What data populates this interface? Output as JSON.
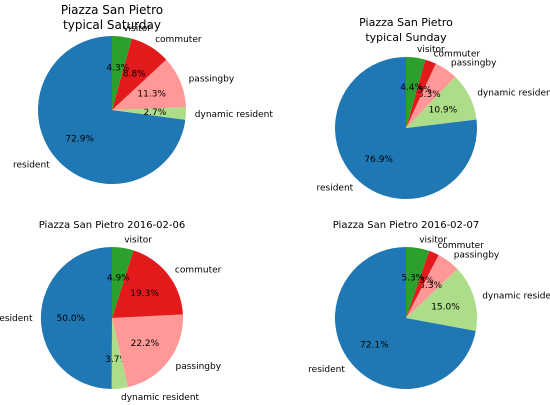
{
  "colors": {
    "resident": "#1f77b4",
    "dynamic resident": "#aedd8a",
    "passingby": "#ff9896",
    "commuter": "#e31a1c",
    "visitor": "#2ca02c"
  },
  "chart_data": [
    {
      "type": "pie",
      "title": [
        "Piazza San Pietro",
        "typical Saturday"
      ],
      "slices": [
        {
          "label": "resident",
          "pct": 72.9,
          "pct_text": "72.9%"
        },
        {
          "label": "dynamic resident",
          "pct": 2.7,
          "pct_text": "2.7%"
        },
        {
          "label": "passingby",
          "pct": 11.3,
          "pct_text": "11.3%"
        },
        {
          "label": "commuter",
          "pct": 8.8,
          "pct_text": "8.8%"
        },
        {
          "label": "visitor",
          "pct": 4.3,
          "pct_text": "4.3%"
        }
      ]
    },
    {
      "type": "pie",
      "title": [
        "Piazza San Pietro",
        "typical Sunday"
      ],
      "slices": [
        {
          "label": "resident",
          "pct": 76.9,
          "pct_text": "76.9%"
        },
        {
          "label": "dynamic resident",
          "pct": 10.9,
          "pct_text": "10.9%"
        },
        {
          "label": "passingby",
          "pct": 5.3,
          "pct_text": "5.3%"
        },
        {
          "label": "commuter",
          "pct": 2.5,
          "pct_text": "2.5%"
        },
        {
          "label": "visitor",
          "pct": 4.4,
          "pct_text": "4.4%"
        }
      ]
    },
    {
      "type": "pie",
      "title": [
        "Piazza San Pietro 2016-02-06"
      ],
      "slices": [
        {
          "label": "resident",
          "pct": 50.0,
          "pct_text": "50.0%"
        },
        {
          "label": "dynamic resident",
          "pct": 3.7,
          "pct_text": "3.7%"
        },
        {
          "label": "passingby",
          "pct": 22.2,
          "pct_text": "22.2%"
        },
        {
          "label": "commuter",
          "pct": 19.3,
          "pct_text": "19.3%"
        },
        {
          "label": "visitor",
          "pct": 4.9,
          "pct_text": "4.9%"
        }
      ]
    },
    {
      "type": "pie",
      "title": [
        "Piazza San Pietro 2016-02-07"
      ],
      "slices": [
        {
          "label": "resident",
          "pct": 72.1,
          "pct_text": "72.1%"
        },
        {
          "label": "dynamic resident",
          "pct": 15.0,
          "pct_text": "15.0%"
        },
        {
          "label": "passingby",
          "pct": 5.3,
          "pct_text": "5.3%"
        },
        {
          "label": "commuter",
          "pct": 2.3,
          "pct_text": "2.3%"
        },
        {
          "label": "visitor",
          "pct": 5.3,
          "pct_text": "5.3%"
        }
      ]
    }
  ]
}
